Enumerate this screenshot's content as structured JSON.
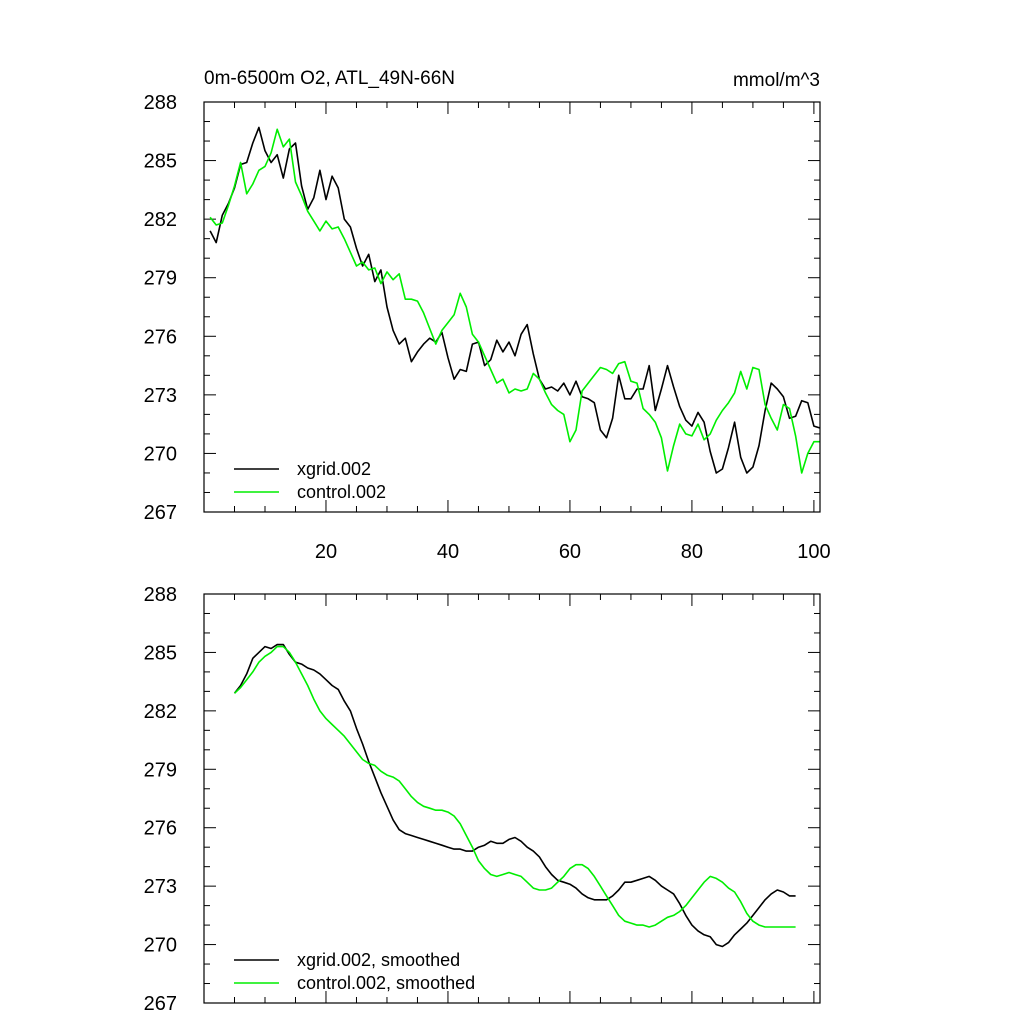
{
  "colors": {
    "xgrid": "#000000",
    "control": "#00ee00",
    "axes": "#000000",
    "background": "#ffffff"
  },
  "chart_data": [
    {
      "type": "line",
      "title": "0m-6500m O2, ATL_49N-66N",
      "units": "mmol/m^3",
      "xlabel": "",
      "ylabel": "",
      "xlim": [
        0,
        101
      ],
      "ylim": [
        267,
        288
      ],
      "xticks": [
        20,
        40,
        60,
        80,
        100
      ],
      "xtick_labels": [
        "20",
        "40",
        "60",
        "80",
        "100"
      ],
      "yticks": [
        267,
        270,
        273,
        276,
        279,
        282,
        285,
        288
      ],
      "ytick_labels": [
        "267",
        "270",
        "273",
        "276",
        "279",
        "282",
        "285",
        "288"
      ],
      "legend_position": "bottom-left",
      "series": [
        {
          "name": "xgrid.002",
          "color": "#000000",
          "x": [
            1,
            2,
            3,
            4,
            5,
            6,
            7,
            8,
            9,
            10,
            11,
            12,
            13,
            14,
            15,
            16,
            17,
            18,
            19,
            20,
            21,
            22,
            23,
            24,
            25,
            26,
            27,
            28,
            29,
            30,
            31,
            32,
            33,
            34,
            35,
            36,
            37,
            38,
            39,
            40,
            41,
            42,
            43,
            44,
            45,
            46,
            47,
            48,
            49,
            50,
            51,
            52,
            53,
            54,
            55,
            56,
            57,
            58,
            59,
            60,
            61,
            62,
            63,
            64,
            65,
            66,
            67,
            68,
            69,
            70,
            71,
            72,
            73,
            74,
            75,
            76,
            77,
            78,
            79,
            80,
            81,
            82,
            83,
            84,
            85,
            86,
            87,
            88,
            89,
            90,
            91,
            92,
            93,
            94,
            95,
            96,
            97,
            98,
            99,
            100,
            101
          ],
          "y": [
            281.4,
            280.8,
            282.2,
            282.8,
            283.6,
            284.8,
            284.9,
            285.9,
            286.7,
            285.5,
            284.9,
            285.3,
            284.1,
            285.6,
            285.9,
            283.7,
            282.5,
            283.1,
            284.5,
            283.0,
            284.2,
            283.6,
            282.0,
            281.6,
            280.5,
            279.6,
            280.2,
            278.8,
            279.4,
            277.5,
            276.3,
            275.6,
            275.9,
            274.7,
            275.2,
            275.6,
            275.9,
            275.7,
            276.2,
            274.9,
            273.8,
            274.3,
            274.2,
            275.6,
            275.7,
            274.5,
            274.8,
            275.8,
            275.2,
            275.7,
            275.0,
            276.1,
            276.6,
            275.1,
            273.8,
            273.3,
            273.4,
            273.2,
            273.6,
            273.0,
            273.7,
            272.9,
            272.8,
            272.6,
            271.2,
            270.8,
            271.8,
            274.0,
            272.8,
            272.8,
            273.3,
            273.3,
            274.5,
            272.2,
            273.3,
            274.5,
            273.4,
            272.4,
            271.7,
            271.4,
            272.1,
            271.6,
            270.1,
            269.0,
            269.2,
            270.3,
            271.6,
            269.8,
            269.0,
            269.3,
            270.4,
            272.2,
            273.6,
            273.3,
            272.9,
            271.8,
            271.9,
            272.7,
            272.6,
            271.4,
            271.3
          ]
        },
        {
          "name": "control.002",
          "color": "#00ee00",
          "x": [
            1,
            2,
            3,
            4,
            5,
            6,
            7,
            8,
            9,
            10,
            11,
            12,
            13,
            14,
            15,
            16,
            17,
            18,
            19,
            20,
            21,
            22,
            23,
            24,
            25,
            26,
            27,
            28,
            29,
            30,
            31,
            32,
            33,
            34,
            35,
            36,
            37,
            38,
            39,
            40,
            41,
            42,
            43,
            44,
            45,
            46,
            47,
            48,
            49,
            50,
            51,
            52,
            53,
            54,
            55,
            56,
            57,
            58,
            59,
            60,
            61,
            62,
            63,
            64,
            65,
            66,
            67,
            68,
            69,
            70,
            71,
            72,
            73,
            74,
            75,
            76,
            77,
            78,
            79,
            80,
            81,
            82,
            83,
            84,
            85,
            86,
            87,
            88,
            89,
            90,
            91,
            92,
            93,
            94,
            95,
            96,
            97,
            98,
            99,
            100,
            101
          ],
          "y": [
            282.1,
            281.7,
            281.8,
            282.7,
            283.7,
            284.9,
            283.3,
            283.8,
            284.5,
            284.7,
            285.4,
            286.6,
            285.7,
            286.1,
            283.9,
            283.2,
            282.4,
            281.9,
            281.4,
            281.9,
            281.5,
            281.6,
            281.0,
            280.3,
            279.6,
            279.8,
            279.4,
            279.5,
            278.7,
            279.3,
            278.9,
            279.2,
            277.9,
            277.9,
            277.8,
            277.2,
            276.4,
            275.6,
            276.3,
            276.7,
            277.1,
            278.2,
            277.5,
            276.1,
            275.7,
            275.0,
            274.3,
            273.6,
            273.8,
            273.1,
            273.3,
            273.2,
            273.3,
            274.1,
            273.8,
            273.1,
            272.5,
            272.2,
            272.0,
            270.6,
            271.2,
            273.2,
            273.6,
            274.0,
            274.4,
            274.3,
            274.1,
            274.6,
            274.7,
            273.7,
            273.6,
            272.3,
            272.0,
            271.6,
            270.8,
            269.1,
            270.4,
            271.5,
            271.0,
            270.9,
            271.5,
            270.7,
            271.0,
            271.7,
            272.2,
            272.6,
            273.1,
            274.2,
            273.3,
            274.4,
            274.3,
            272.5,
            271.8,
            271.2,
            272.5,
            272.3,
            270.9,
            269.0,
            270.0,
            270.6,
            270.6
          ]
        }
      ]
    },
    {
      "type": "line",
      "title": "",
      "xlabel": "",
      "ylabel": "",
      "xlim": [
        0,
        101
      ],
      "ylim": [
        267,
        288
      ],
      "xticks": [
        20,
        40,
        60,
        80,
        100
      ],
      "xtick_labels": [],
      "yticks": [
        267,
        270,
        273,
        276,
        279,
        282,
        285,
        288
      ],
      "ytick_labels": [
        "267",
        "270",
        "273",
        "276",
        "279",
        "282",
        "285",
        "288"
      ],
      "legend_position": "bottom-left",
      "series": [
        {
          "name": "xgrid.002, smoothed",
          "color": "#000000",
          "x": [
            5,
            6,
            7,
            8,
            9,
            10,
            11,
            12,
            13,
            14,
            15,
            16,
            17,
            18,
            19,
            20,
            21,
            22,
            23,
            24,
            25,
            26,
            27,
            28,
            29,
            30,
            31,
            32,
            33,
            34,
            35,
            36,
            37,
            38,
            39,
            40,
            41,
            42,
            43,
            44,
            45,
            46,
            47,
            48,
            49,
            50,
            51,
            52,
            53,
            54,
            55,
            56,
            57,
            58,
            59,
            60,
            61,
            62,
            63,
            64,
            65,
            66,
            67,
            68,
            69,
            70,
            71,
            72,
            73,
            74,
            75,
            76,
            77,
            78,
            79,
            80,
            81,
            82,
            83,
            84,
            85,
            86,
            87,
            88,
            89,
            90,
            91,
            92,
            93,
            94,
            95,
            96,
            97
          ],
          "y": [
            282.9,
            283.3,
            283.9,
            284.7,
            285.0,
            285.3,
            285.2,
            285.4,
            285.4,
            284.9,
            284.5,
            284.4,
            284.2,
            284.1,
            283.9,
            283.6,
            283.3,
            283.1,
            282.5,
            282.0,
            281.1,
            280.3,
            279.4,
            278.6,
            277.8,
            277.1,
            276.4,
            275.9,
            275.7,
            275.6,
            275.5,
            275.4,
            275.3,
            275.2,
            275.1,
            275.0,
            274.9,
            274.9,
            274.8,
            274.8,
            275.0,
            275.1,
            275.3,
            275.2,
            275.2,
            275.4,
            275.5,
            275.3,
            275.0,
            274.8,
            274.5,
            274.0,
            273.6,
            273.3,
            273.2,
            273.1,
            272.9,
            272.6,
            272.4,
            272.3,
            272.3,
            272.3,
            272.5,
            272.8,
            273.2,
            273.2,
            273.3,
            273.4,
            273.5,
            273.3,
            273.0,
            272.8,
            272.6,
            272.1,
            271.5,
            271.0,
            270.7,
            270.5,
            270.4,
            270.0,
            269.9,
            270.1,
            270.5,
            270.8,
            271.1,
            271.5,
            271.9,
            272.3,
            272.6,
            272.8,
            272.7,
            272.5,
            272.5
          ]
        },
        {
          "name": "control.002, smoothed",
          "color": "#00ee00",
          "x": [
            5,
            6,
            7,
            8,
            9,
            10,
            11,
            12,
            13,
            14,
            15,
            16,
            17,
            18,
            19,
            20,
            21,
            22,
            23,
            24,
            25,
            26,
            27,
            28,
            29,
            30,
            31,
            32,
            33,
            34,
            35,
            36,
            37,
            38,
            39,
            40,
            41,
            42,
            43,
            44,
            45,
            46,
            47,
            48,
            49,
            50,
            51,
            52,
            53,
            54,
            55,
            56,
            57,
            58,
            59,
            60,
            61,
            62,
            63,
            64,
            65,
            66,
            67,
            68,
            69,
            70,
            71,
            72,
            73,
            74,
            75,
            76,
            77,
            78,
            79,
            80,
            81,
            82,
            83,
            84,
            85,
            86,
            87,
            88,
            89,
            90,
            91,
            92,
            93,
            94,
            95,
            96,
            97
          ],
          "y": [
            282.9,
            283.2,
            283.6,
            284.0,
            284.5,
            284.8,
            285.0,
            285.3,
            285.3,
            285.0,
            284.5,
            283.9,
            283.3,
            282.6,
            282.0,
            281.6,
            281.3,
            281.0,
            280.7,
            280.3,
            279.9,
            279.5,
            279.3,
            279.2,
            278.9,
            278.7,
            278.6,
            278.4,
            278.0,
            277.6,
            277.3,
            277.1,
            277.0,
            276.9,
            276.9,
            276.8,
            276.6,
            276.2,
            275.6,
            275.0,
            274.3,
            273.9,
            273.6,
            273.5,
            273.6,
            273.7,
            273.6,
            273.5,
            273.2,
            272.9,
            272.8,
            272.8,
            272.9,
            273.2,
            273.5,
            273.9,
            274.1,
            274.1,
            273.9,
            273.5,
            273.0,
            272.5,
            272.0,
            271.5,
            271.2,
            271.1,
            271.0,
            271.0,
            270.9,
            271.0,
            271.2,
            271.4,
            271.5,
            271.7,
            272.0,
            272.4,
            272.8,
            273.2,
            273.5,
            273.4,
            273.2,
            272.9,
            272.7,
            272.2,
            271.6,
            271.2,
            271.0,
            270.9,
            270.9,
            270.9,
            270.9,
            270.9,
            270.9
          ]
        }
      ]
    }
  ]
}
